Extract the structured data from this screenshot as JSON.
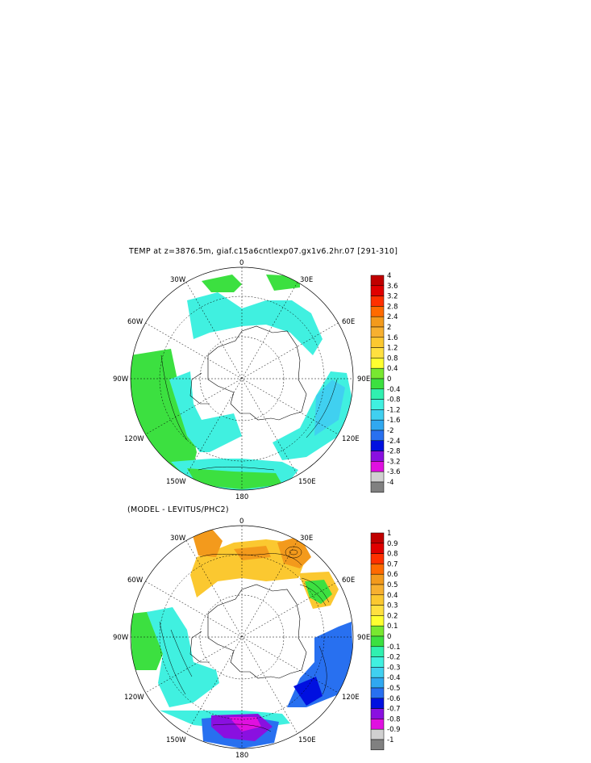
{
  "panels": [
    {
      "id": "top",
      "title": "TEMP at z=3876.5m, giaf.c15a6cntlexp07.gx1v6.2hr.07 [291-310]",
      "lon_labels": {
        "n": "0",
        "ne30": "30E",
        "ne60": "60E",
        "e90": "90E",
        "se120": "120E",
        "se150": "150E",
        "s180": "180",
        "sw150": "150W",
        "sw120": "120W",
        "w90": "90W",
        "nw60": "60W",
        "nw30": "30W"
      },
      "colorbar": {
        "labels": [
          "4",
          "3.6",
          "3.2",
          "2.8",
          "2.4",
          "2",
          "1.6",
          "1.2",
          "0.8",
          "0.4",
          "0",
          "-0.4",
          "-0.8",
          "-1.2",
          "-1.6",
          "-2",
          "-2.4",
          "-2.8",
          "-3.2",
          "-3.6",
          "-4"
        ],
        "colors": [
          "#c00000",
          "#e00000",
          "#ff3000",
          "#ff6a00",
          "#f39a1c",
          "#f7b030",
          "#fbc830",
          "#ffe040",
          "#ffff30",
          "#78e830",
          "#3ce040",
          "#30f0b0",
          "#40f0e0",
          "#40d0f0",
          "#30a8f0",
          "#2870f0",
          "#0010e0",
          "#8a10e0",
          "#e010e0",
          "#d0d0d0",
          "#808080"
        ]
      }
    },
    {
      "id": "bottom",
      "title": "(MODEL - LEVITUS/PHC2)",
      "lon_labels": {
        "n": "0",
        "ne30": "30E",
        "ne60": "60E",
        "e90": "90E",
        "se120": "120E",
        "se150": "150E",
        "s180": "180",
        "sw150": "150W",
        "sw120": "120W",
        "w90": "90W",
        "nw60": "60W",
        "nw30": "30W"
      },
      "colorbar": {
        "labels": [
          "1",
          "0.9",
          "0.8",
          "0.7",
          "0.6",
          "0.5",
          "0.4",
          "0.3",
          "0.2",
          "0.1",
          "0",
          "-0.1",
          "-0.2",
          "-0.3",
          "-0.4",
          "-0.5",
          "-0.6",
          "-0.7",
          "-0.8",
          "-0.9",
          "-1"
        ],
        "colors": [
          "#c00000",
          "#e00000",
          "#ff3000",
          "#ff6a00",
          "#f39a1c",
          "#f7b030",
          "#fbc830",
          "#ffe040",
          "#ffff30",
          "#78e830",
          "#3ce040",
          "#30f0b0",
          "#40f0e0",
          "#40d0f0",
          "#30a8f0",
          "#2870f0",
          "#0010e0",
          "#8a10e0",
          "#e010e0",
          "#d0d0d0",
          "#808080"
        ]
      }
    }
  ],
  "field_colors": {
    "top": {
      "green": "#3ce040",
      "cyan": "#40f0e0",
      "lightblue": "#40d0f0"
    },
    "bottom": {
      "orange": "#f39a1c",
      "yellow": "#fbc830",
      "green": "#3ce040",
      "cyan": "#40f0e0",
      "blue": "#2870f0",
      "deepblue": "#0010e0",
      "purple": "#8a10e0",
      "magenta": "#e010e0"
    }
  }
}
